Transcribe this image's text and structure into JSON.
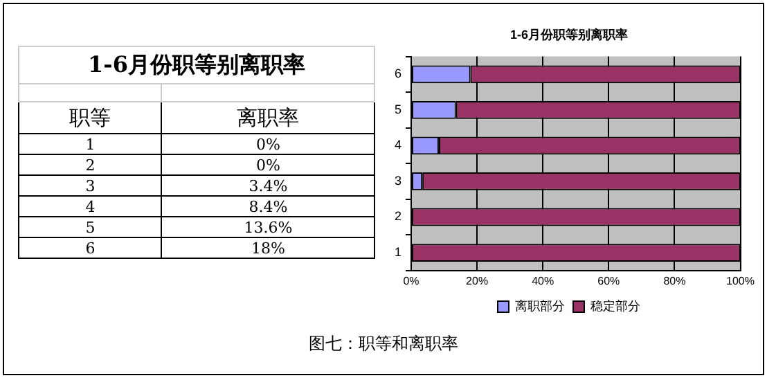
{
  "chart_data": {
    "type": "bar",
    "orientation": "horizontal",
    "stacked": true,
    "title": "1-6月份职等别离职率",
    "categories": [
      "6",
      "5",
      "4",
      "3",
      "2",
      "1"
    ],
    "series": [
      {
        "name": "离职部分",
        "color": "#9999ff",
        "values": [
          18,
          13.6,
          8.4,
          3.4,
          0,
          0
        ]
      },
      {
        "name": "稳定部分",
        "color": "#993366",
        "values": [
          82,
          86.4,
          91.6,
          96.6,
          100,
          100
        ]
      }
    ],
    "xlim": [
      0,
      100
    ],
    "xticks": [
      {
        "value": 0,
        "label": "0%"
      },
      {
        "value": 20,
        "label": "20%"
      },
      {
        "value": 40,
        "label": "40%"
      },
      {
        "value": 60,
        "label": "60%"
      },
      {
        "value": 80,
        "label": "80%"
      },
      {
        "value": 100,
        "label": "100%"
      }
    ],
    "grid": "x",
    "legend": "bottom",
    "annotations": [
      "1-6月份职等别离职率",
      "职等",
      "离职率",
      "1",
      "0%",
      "2",
      "0%",
      "3",
      "3.4%",
      "4",
      "8.4%",
      "5",
      "13.6%",
      "6",
      "18%",
      "图七：职等和离职率"
    ]
  }
}
